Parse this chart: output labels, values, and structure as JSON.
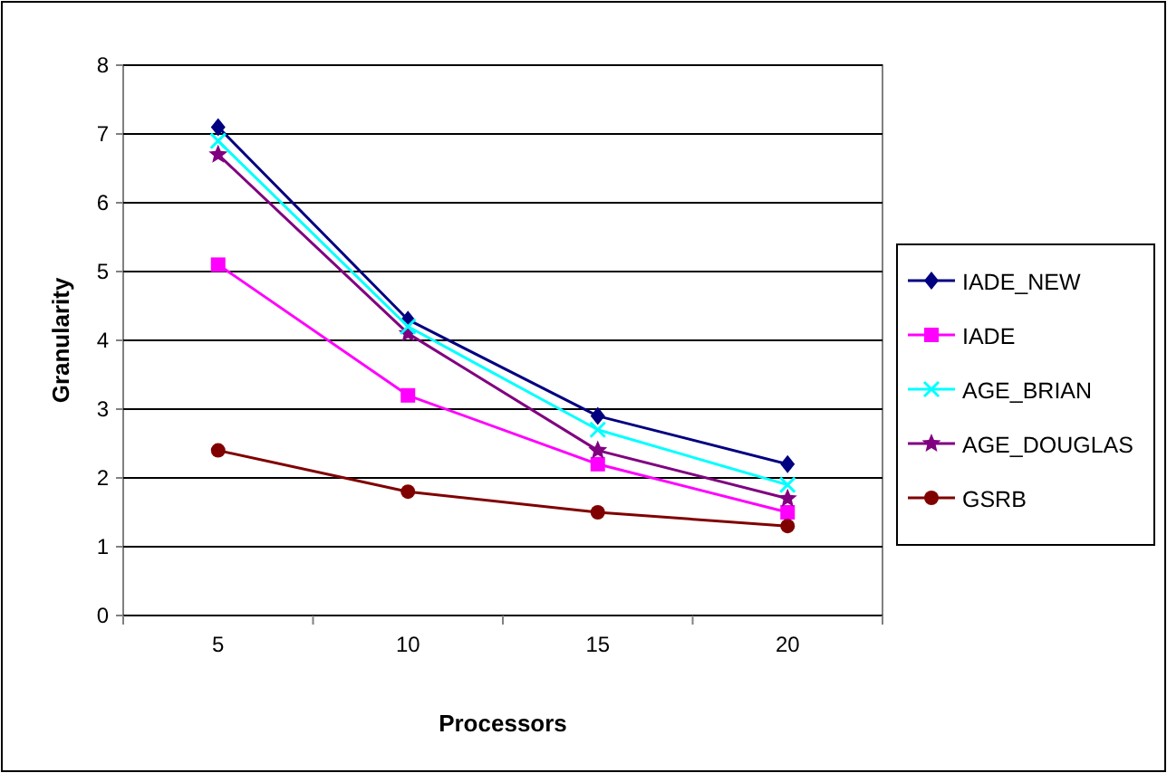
{
  "chart_data": {
    "type": "line",
    "xlabel": "Processors",
    "ylabel": "Granularity",
    "categories": [
      "5",
      "10",
      "15",
      "20"
    ],
    "series": [
      {
        "name": "IADE_NEW",
        "color": "#000080",
        "marker": "diamond",
        "values": [
          7.1,
          4.3,
          2.9,
          2.2
        ]
      },
      {
        "name": "IADE",
        "color": "#ff00ff",
        "marker": "square",
        "values": [
          5.1,
          3.2,
          2.2,
          1.5
        ]
      },
      {
        "name": "AGE_BRIAN",
        "color": "#00ffff",
        "marker": "cross",
        "values": [
          6.9,
          4.2,
          2.7,
          1.9
        ]
      },
      {
        "name": "AGE_DOUGLAS",
        "color": "#800080",
        "marker": "star",
        "values": [
          6.7,
          4.1,
          2.4,
          1.7
        ]
      },
      {
        "name": "GSRB",
        "color": "#800000",
        "marker": "circle",
        "values": [
          2.4,
          1.8,
          1.5,
          1.3
        ]
      }
    ],
    "ylim": [
      0,
      8
    ],
    "yticks": [
      0,
      1,
      2,
      3,
      4,
      5,
      6,
      7,
      8
    ],
    "grid": "y",
    "legend": "right"
  }
}
